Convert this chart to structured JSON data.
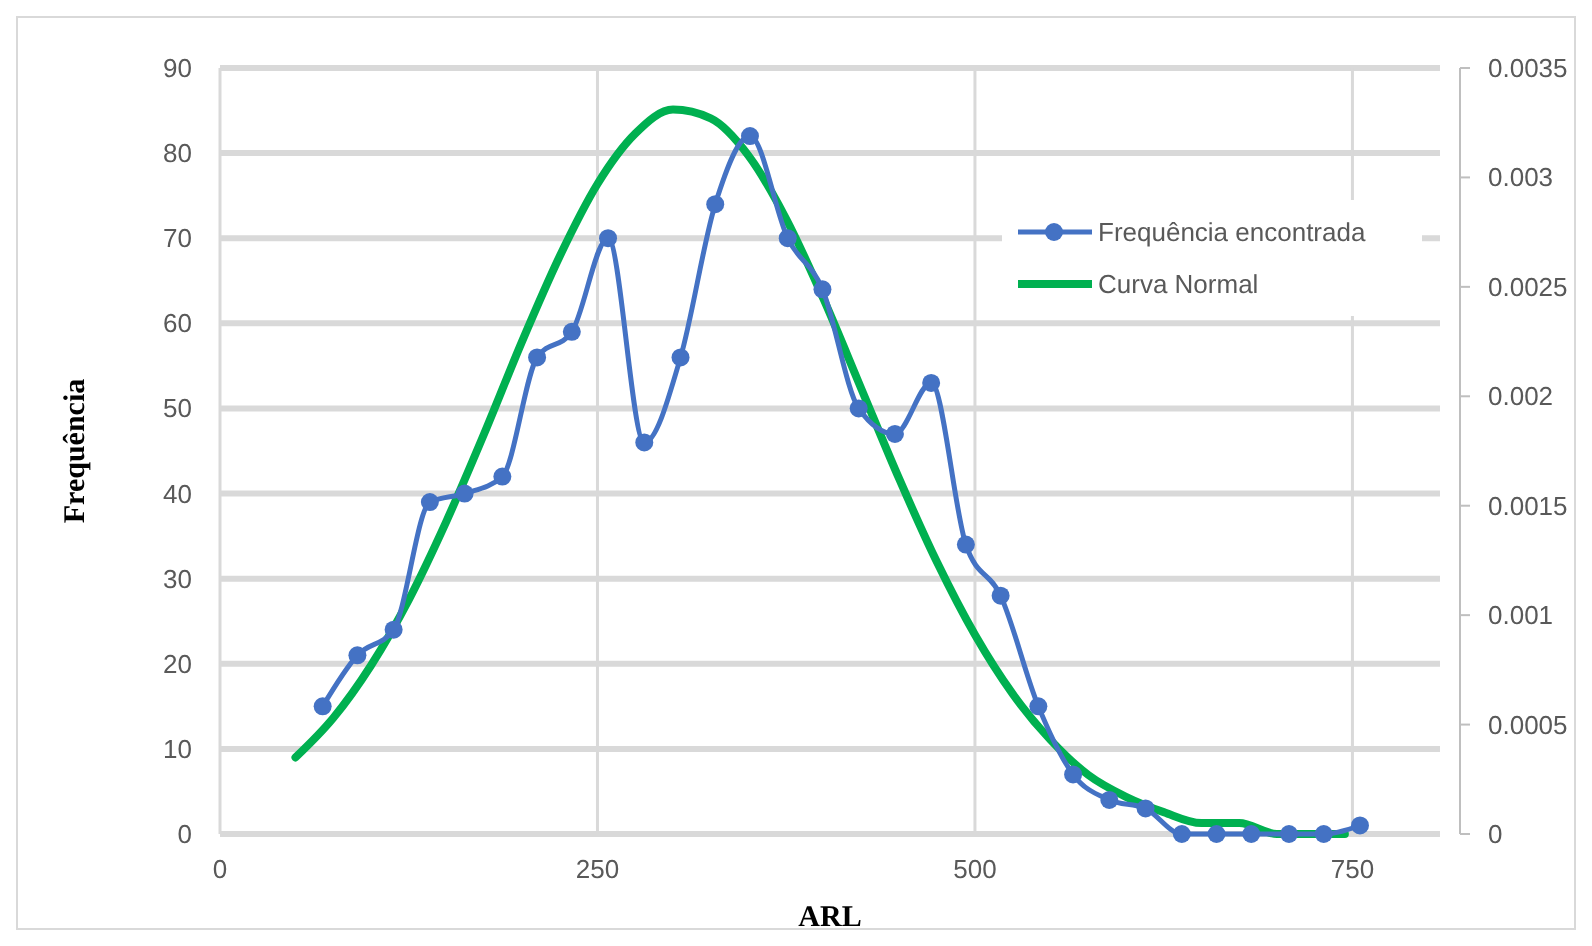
{
  "chart_data": {
    "type": "line",
    "xlabel": "ARL",
    "ylabel": "Frequência",
    "xlim": [
      0,
      808
    ],
    "xticks": [
      0,
      250,
      500,
      750
    ],
    "ylim": [
      0,
      90
    ],
    "yticks": [
      0,
      10,
      20,
      30,
      40,
      50,
      60,
      70,
      80,
      90
    ],
    "y2lim": [
      0,
      0.0035
    ],
    "y2ticks": [
      0,
      0.0005,
      0.001,
      0.0015,
      0.002,
      0.0025,
      0.003,
      0.0035
    ],
    "grid": true,
    "legend": "right",
    "series": [
      {
        "name": "Frequência encontrada",
        "color": "#4472c4",
        "marker": "circle",
        "x": [
          68,
          91,
          115,
          139,
          162,
          187,
          210,
          233,
          257,
          281,
          305,
          328,
          351,
          376,
          399,
          423,
          447,
          471,
          494,
          517,
          542,
          565,
          589,
          613,
          637,
          660,
          683,
          708,
          731,
          755
        ],
        "values": [
          15,
          21,
          24,
          39,
          40,
          42,
          56,
          59,
          70,
          46,
          56,
          74,
          82,
          70,
          64,
          50,
          47,
          53,
          34,
          28,
          15,
          7,
          4,
          3,
          0,
          0,
          0,
          0,
          0,
          1
        ]
      },
      {
        "name": "Curva Normal",
        "color": "#00b050",
        "axis": "y2",
        "marker": "none",
        "x": [
          50,
          75,
          100,
          125,
          150,
          175,
          200,
          225,
          250,
          275,
          300,
          325,
          350,
          375,
          400,
          425,
          450,
          475,
          500,
          525,
          550,
          575,
          600,
          625,
          650,
          675,
          700,
          725,
          745
        ],
        "values": [
          0.00035,
          0.00053,
          0.00077,
          0.00107,
          0.00143,
          0.00183,
          0.00225,
          0.00264,
          0.00297,
          0.0032,
          0.00331,
          0.00327,
          0.0031,
          0.00281,
          0.00244,
          0.00203,
          0.00162,
          0.00124,
          0.00091,
          0.00064,
          0.00043,
          0.00027,
          0.00017,
          0.0001,
          5e-05,
          5e-05,
          0.0,
          0.0,
          0.0
        ]
      }
    ]
  }
}
